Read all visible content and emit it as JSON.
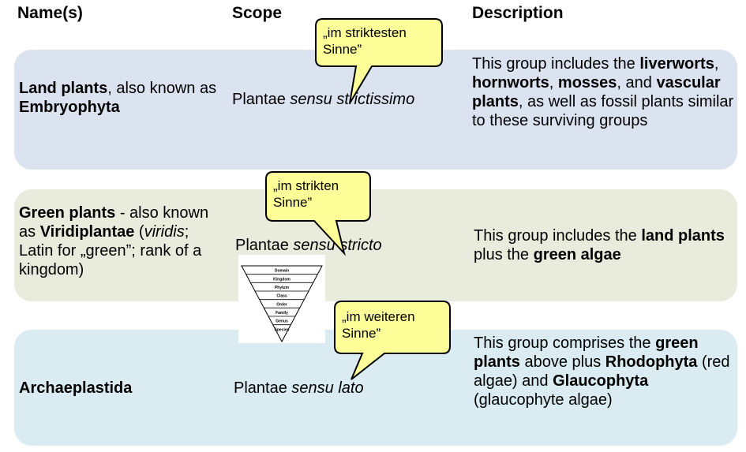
{
  "headers": {
    "names": "Name(s)",
    "scope": "Scope",
    "description": "Description"
  },
  "rows": [
    {
      "name": {
        "bold1": "Land plants",
        "rest1": ", also known as ",
        "bold2": "Embryophyta"
      },
      "scope": {
        "prefix": "Plantae ",
        "italic": "sensu strictissimo"
      },
      "description": {
        "t1": "This group includes the ",
        "b1": "liverworts",
        "t2": ", ",
        "b2": "hornworts",
        "t3": ", ",
        "b3": "mosses",
        "t4": ", and ",
        "b4": "vascular plants",
        "t5": ", as well as fossil plants similar to these surviving groups"
      },
      "bubble": "„im striktesten\nSinne”",
      "color": "#dbe3f1"
    },
    {
      "name": {
        "bold1": "Green plants",
        "rest1": " - also known as ",
        "bold2": "Viridiplantae",
        "rest2": " (",
        "italic": "viridis",
        "rest3": "; Latin for „green”; rank of a kingdom)"
      },
      "scope": {
        "prefix": "Plantae ",
        "italic": "sensu stricto"
      },
      "description": {
        "t1": "This group includes the ",
        "b1": "land plants",
        "t2": " plus the ",
        "b2": "green algae"
      },
      "bubble": "„im strikten\nSinne”",
      "color": "#e9ecdd"
    },
    {
      "name": {
        "bold1": "Archaeplastida"
      },
      "scope": {
        "prefix": "Plantae ",
        "italic": "sensu lato"
      },
      "description": {
        "t1": "This group comprises the ",
        "b1": "green plants",
        "t2": " above plus ",
        "b2": "Rhodophyta",
        "t3": " (red algae) and ",
        "b3": "Glaucophyta",
        "t4": " (glaucophyte algae)"
      },
      "bubble": "„im weiteren\nSinne”",
      "color": "#daecf1"
    }
  ],
  "bubble_color": "#ffff99",
  "bubble_border": "#000000",
  "pyramid_levels": [
    "Domain",
    "Kingdom",
    "Phylum",
    "Class",
    "Order",
    "Family",
    "Genus",
    "Species"
  ]
}
